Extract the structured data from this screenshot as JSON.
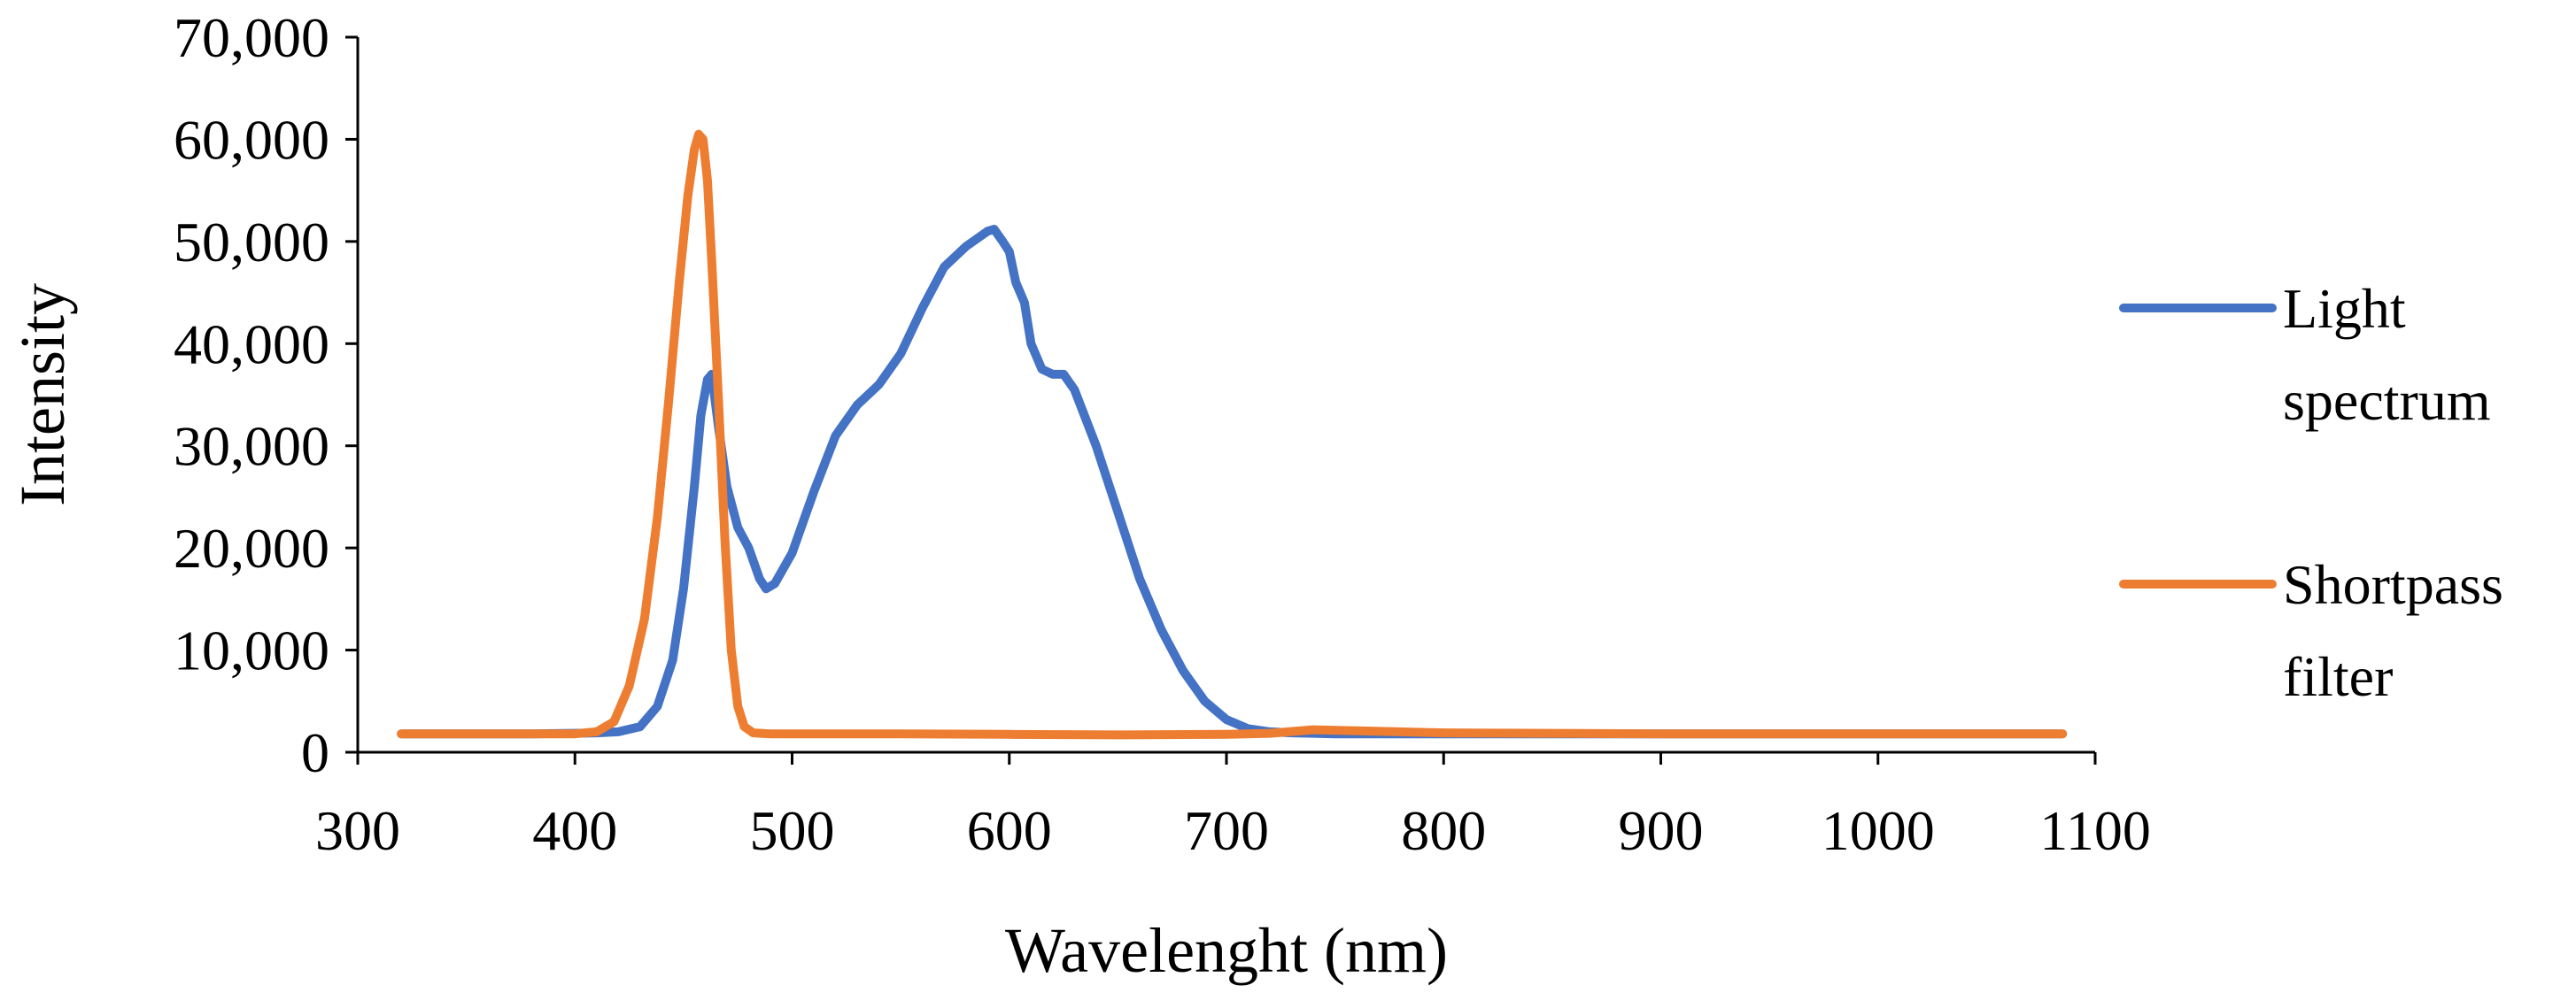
{
  "chart_data": {
    "type": "line",
    "title": "",
    "xlabel": "Wavelenght (nm)",
    "ylabel": "Intensity",
    "xlim": [
      300,
      1100
    ],
    "ylim": [
      0,
      70000
    ],
    "xticks": [
      "300",
      "400",
      "500",
      "600",
      "700",
      "800",
      "900",
      "1000",
      "1100"
    ],
    "xtick_values": [
      300,
      400,
      500,
      600,
      700,
      800,
      900,
      1000,
      1100
    ],
    "yticks": [
      "0",
      "10,000",
      "20,000",
      "30,000",
      "40,000",
      "50,000",
      "60,000",
      "70,000"
    ],
    "ytick_values": [
      0,
      10000,
      20000,
      30000,
      40000,
      50000,
      60000,
      70000
    ],
    "grid": false,
    "legend_position": "right",
    "series": [
      {
        "name": "Light spectrum",
        "legend_lines": [
          "Light",
          "spectrum"
        ],
        "color": "#4472C4",
        "x": [
          320,
          350,
          380,
          400,
          410,
          420,
          430,
          438,
          445,
          450,
          455,
          458,
          461,
          463,
          466,
          470,
          475,
          480,
          485,
          488,
          492,
          500,
          510,
          520,
          530,
          540,
          550,
          560,
          570,
          580,
          590,
          593,
          597,
          600,
          603,
          607,
          610,
          615,
          620,
          625,
          630,
          640,
          650,
          660,
          670,
          680,
          690,
          700,
          710,
          720,
          730,
          740,
          750,
          800,
          900,
          1000,
          1085
        ],
        "y": [
          1800,
          1800,
          1800,
          1850,
          1900,
          2000,
          2500,
          4500,
          9000,
          16000,
          26000,
          33000,
          36500,
          37000,
          32000,
          26000,
          22000,
          20000,
          17000,
          16000,
          16500,
          19500,
          25500,
          31000,
          34000,
          36000,
          39000,
          43500,
          47500,
          49500,
          51000,
          51200,
          50000,
          49000,
          46000,
          44000,
          40000,
          37500,
          37000,
          37000,
          35500,
          30000,
          23500,
          17000,
          12000,
          8000,
          5000,
          3200,
          2300,
          2000,
          1900,
          1850,
          1800,
          1800,
          1800,
          1800,
          1800
        ]
      },
      {
        "name": "Shortpass filter",
        "legend_lines": [
          "Shortpass",
          "filter"
        ],
        "color": "#ED7D31",
        "x": [
          320,
          350,
          380,
          400,
          410,
          418,
          425,
          432,
          438,
          443,
          448,
          452,
          455,
          457,
          459,
          461,
          463,
          466,
          469,
          472,
          475,
          478,
          482,
          490,
          500,
          550,
          600,
          650,
          700,
          720,
          740,
          760,
          800,
          900,
          1000,
          1085
        ],
        "y": [
          1800,
          1800,
          1800,
          1800,
          2000,
          3000,
          6500,
          13000,
          23000,
          34000,
          46000,
          54500,
          59000,
          60500,
          60000,
          56000,
          48000,
          35000,
          21000,
          10000,
          4500,
          2500,
          1900,
          1800,
          1800,
          1800,
          1750,
          1700,
          1750,
          1850,
          2200,
          2100,
          1900,
          1800,
          1800,
          1800
        ]
      }
    ]
  }
}
